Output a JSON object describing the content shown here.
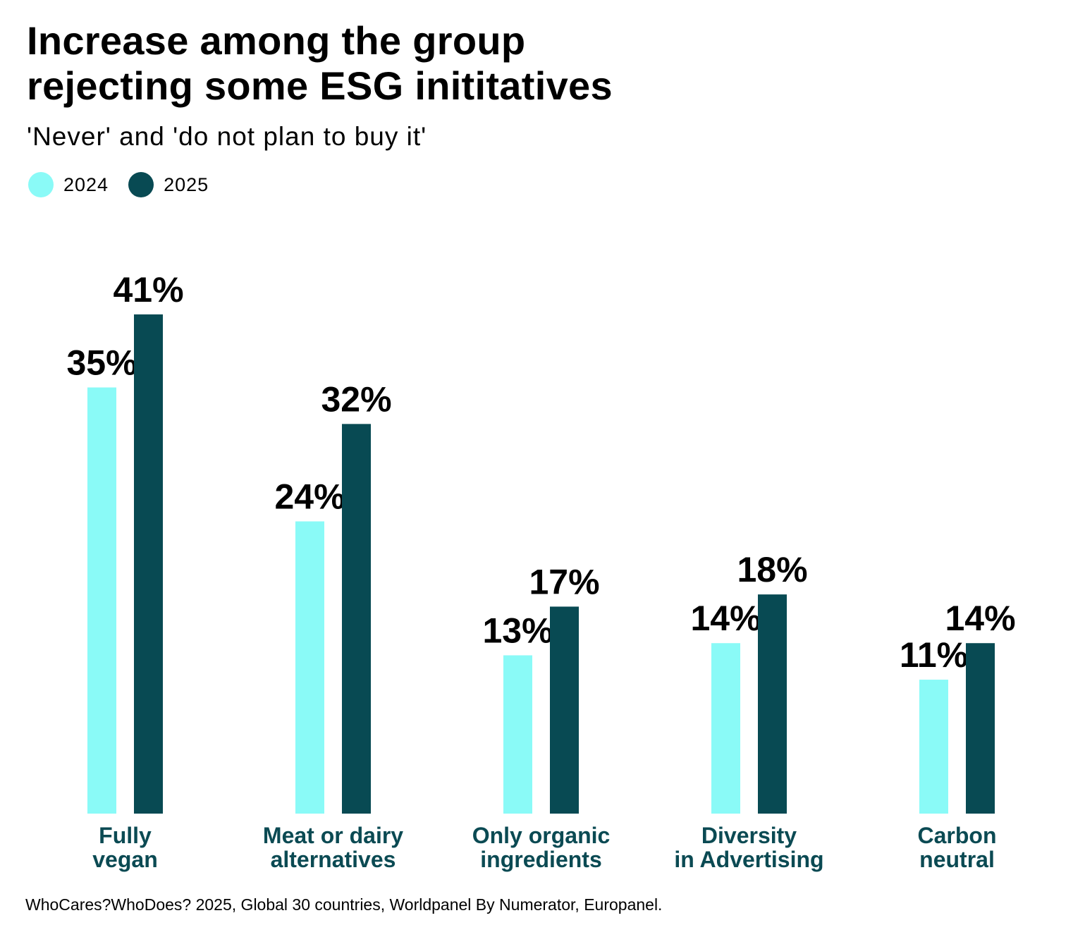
{
  "colors": {
    "series_2024": "#8afaf7",
    "series_2025": "#084a53",
    "category_label": "#0b4a53"
  },
  "legend": [
    {
      "label": "2024"
    },
    {
      "label": "2025"
    }
  ],
  "chart_data": {
    "type": "bar",
    "title": "Increase among the group rejecting some ESG inititatives",
    "title_lines": [
      "Increase among the group",
      "rejecting some ESG inititatives"
    ],
    "subtitle": "'Never' and 'do not plan to buy it'",
    "categories": [
      [
        "Fully",
        "vegan"
      ],
      [
        "Meat or dairy",
        "alternatives"
      ],
      [
        "Only organic",
        "ingredients"
      ],
      [
        "Diversity",
        "in Advertising"
      ],
      [
        "Carbon",
        "neutral"
      ]
    ],
    "series": [
      {
        "name": "2024",
        "values": [
          35,
          24,
          13,
          14,
          11
        ],
        "labels": [
          "35%",
          "24%",
          "13%",
          "14%",
          "11%"
        ]
      },
      {
        "name": "2025",
        "values": [
          41,
          32,
          17,
          18,
          14
        ],
        "labels": [
          "41%",
          "32%",
          "17%",
          "18%",
          "14%"
        ]
      }
    ],
    "xlabel": "",
    "ylabel": "",
    "ylim": [
      0,
      41
    ],
    "grid": false,
    "legend_position": "top-left"
  },
  "footnote": "WhoCares?WhoDoes? 2025, Global 30 countries, Worldpanel By Numerator, Europanel."
}
